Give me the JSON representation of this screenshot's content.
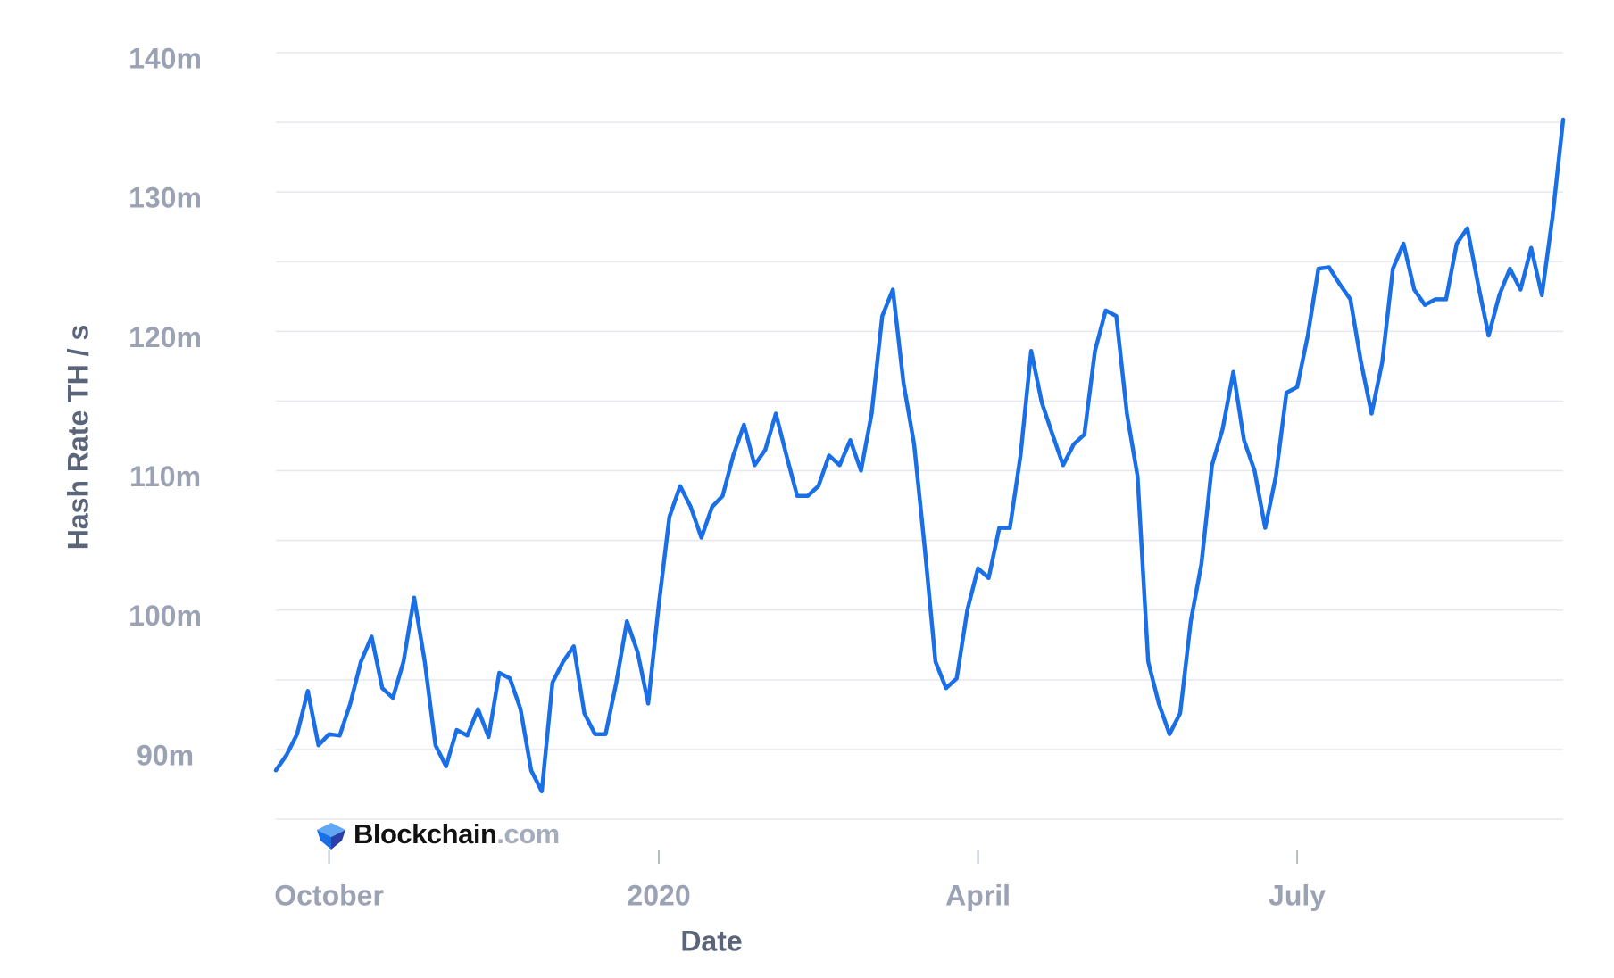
{
  "chart_data": {
    "type": "line",
    "x_label": "Date",
    "y_label": "Hash Rate TH / s",
    "watermark": {
      "brand": "Blockchain",
      "suffix": ".com"
    },
    "categories": [
      null,
      null,
      null,
      null,
      null,
      "October",
      null,
      null,
      null,
      null,
      null,
      null,
      null,
      null,
      null,
      null,
      null,
      null,
      null,
      null,
      null,
      null,
      null,
      null,
      null,
      null,
      null,
      null,
      null,
      null,
      null,
      null,
      null,
      null,
      null,
      null,
      "2020",
      null,
      null,
      null,
      null,
      null,
      null,
      null,
      null,
      null,
      null,
      null,
      null,
      null,
      null,
      null,
      null,
      null,
      null,
      null,
      null,
      null,
      null,
      null,
      null,
      null,
      null,
      null,
      null,
      null,
      "April",
      null,
      null,
      null,
      null,
      null,
      null,
      null,
      null,
      null,
      null,
      null,
      null,
      null,
      null,
      null,
      null,
      null,
      null,
      null,
      null,
      null,
      null,
      null,
      null,
      null,
      null,
      null,
      null,
      null,
      "July",
      null,
      null,
      null,
      null,
      null,
      null,
      null,
      null,
      null,
      null,
      null,
      null,
      null,
      null,
      null,
      null,
      null,
      null,
      null,
      null,
      null,
      null,
      null,
      null,
      null
    ],
    "series": [
      {
        "color": "#1a6fe6",
        "values": [
          88.5,
          89.6,
          91.1,
          94.2,
          90.3,
          91.1,
          91,
          93.3,
          96.3,
          98.1,
          94.4,
          93.7,
          96.3,
          100.9,
          96.3,
          90.3,
          88.8,
          91.4,
          91,
          92.9,
          90.9,
          95.5,
          95.1,
          92.9,
          88.5,
          87,
          94.8,
          96.3,
          97.4,
          92.6,
          91.1,
          91.1,
          94.8,
          99.2,
          97,
          93.3,
          100.4,
          106.7,
          108.9,
          107.4,
          105.2,
          107.4,
          108.2,
          111.1,
          113.3,
          110.4,
          111.5,
          114.1,
          111.1,
          108.2,
          108.2,
          108.9,
          111.1,
          110.4,
          112.2,
          110,
          114.1,
          121.1,
          123,
          116.3,
          111.9,
          104.4,
          96.3,
          94.4,
          95.1,
          100,
          103,
          102.3,
          105.9,
          105.9,
          111.1,
          118.6,
          114.9,
          112.6,
          110.4,
          111.9,
          112.6,
          118.6,
          121.5,
          121.1,
          114.1,
          109.6,
          96.3,
          93.3,
          91.1,
          92.6,
          99.2,
          103.3,
          110.4,
          113,
          117.1,
          112.2,
          110,
          105.9,
          109.6,
          115.6,
          116,
          119.7,
          124.5,
          124.6,
          123.4,
          122.3,
          117.8,
          114.1,
          117.8,
          124.5,
          126.3,
          123,
          121.9,
          122.3,
          122.3,
          126.3,
          127.4,
          123.4,
          119.7,
          122.6,
          124.5,
          123,
          126,
          122.6,
          128.2,
          135.2
        ]
      }
    ],
    "ylim": [
      85,
      140
    ],
    "yticks": [
      {
        "value": 90,
        "label": "90m"
      },
      {
        "value": 100,
        "label": "100m"
      },
      {
        "value": 110,
        "label": "110m"
      },
      {
        "value": 120,
        "label": "120m"
      },
      {
        "value": 130,
        "label": "130m"
      },
      {
        "value": 140,
        "label": "140m"
      }
    ],
    "minor_yticks": [
      85,
      95,
      105,
      115,
      125,
      135
    ],
    "grid": true
  }
}
